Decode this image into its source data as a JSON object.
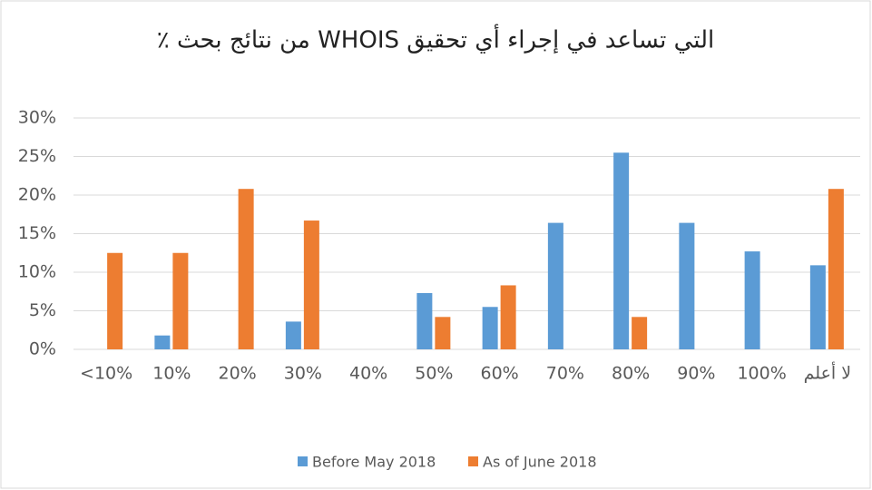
{
  "chart_data": {
    "type": "bar",
    "title": "٪ من نتائج بحث WHOIS التي تساعد في إجراء أي تحقيق",
    "categories": [
      "<10%",
      "10%",
      "20%",
      "30%",
      "40%",
      "50%",
      "60%",
      "70%",
      "80%",
      "90%",
      "100%",
      "لا أعلم"
    ],
    "series": [
      {
        "name": "Before May 2018",
        "color": "#5b9bd5",
        "values": [
          0,
          1.8,
          0,
          3.6,
          0,
          7.3,
          5.5,
          16.4,
          25.5,
          16.4,
          12.7,
          10.9
        ]
      },
      {
        "name": "As of June 2018",
        "color": "#ed7d31",
        "values": [
          12.5,
          12.5,
          20.8,
          16.7,
          0,
          4.2,
          8.3,
          0,
          4.2,
          0,
          0,
          20.8
        ]
      }
    ],
    "ylim": [
      0,
      30
    ],
    "yticks": [
      {
        "value": 0,
        "label": "0%"
      },
      {
        "value": 5,
        "label": "5%"
      },
      {
        "value": 10,
        "label": "10%"
      },
      {
        "value": 15,
        "label": "15%"
      },
      {
        "value": 20,
        "label": "20%"
      },
      {
        "value": 25,
        "label": "25%"
      },
      {
        "value": 30,
        "label": "30%"
      }
    ],
    "grid": true,
    "legend": "bottom"
  }
}
